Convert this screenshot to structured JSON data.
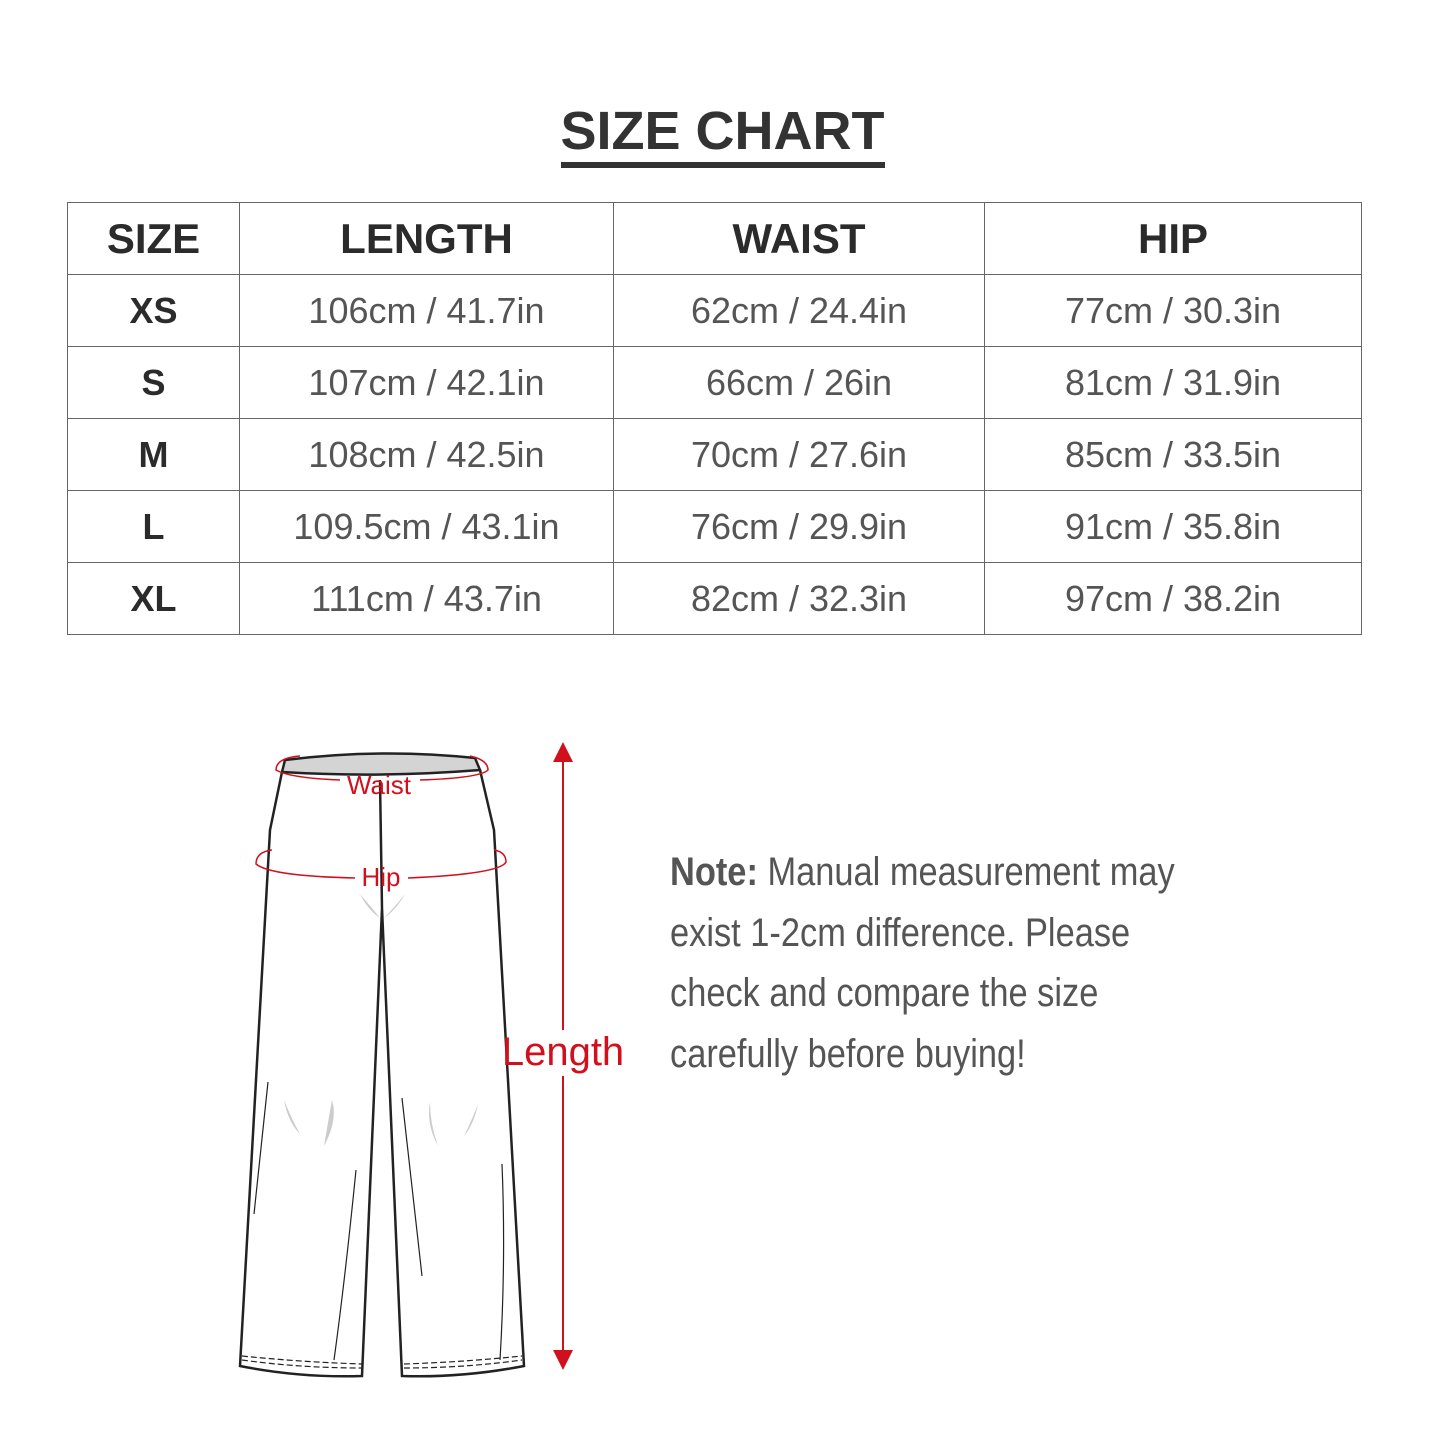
{
  "title": "SIZE CHART",
  "table": {
    "headers": [
      "SIZE",
      "LENGTH",
      "WAIST",
      "HIP"
    ],
    "rows": [
      [
        "XS",
        "106cm / 41.7in",
        "62cm / 24.4in",
        "77cm / 30.3in"
      ],
      [
        "S",
        "107cm / 42.1in",
        "66cm / 26in",
        "81cm / 31.9in"
      ],
      [
        "M",
        "108cm / 42.5in",
        "70cm / 27.6in",
        "85cm / 33.5in"
      ],
      [
        "L",
        "109.5cm / 43.1in",
        "76cm / 29.9in",
        "91cm / 35.8in"
      ],
      [
        "XL",
        "111cm / 43.7in",
        "82cm / 32.3in",
        "97cm / 38.2in"
      ]
    ]
  },
  "diagram": {
    "waist_label": "Waist",
    "hip_label": "Hip",
    "length_label": "Length",
    "accent_color": "#d0101c"
  },
  "note": {
    "label": "Note:",
    "text": " Manual measurement may exist 1-2cm difference. Please check and compare the size carefully before buying!"
  }
}
